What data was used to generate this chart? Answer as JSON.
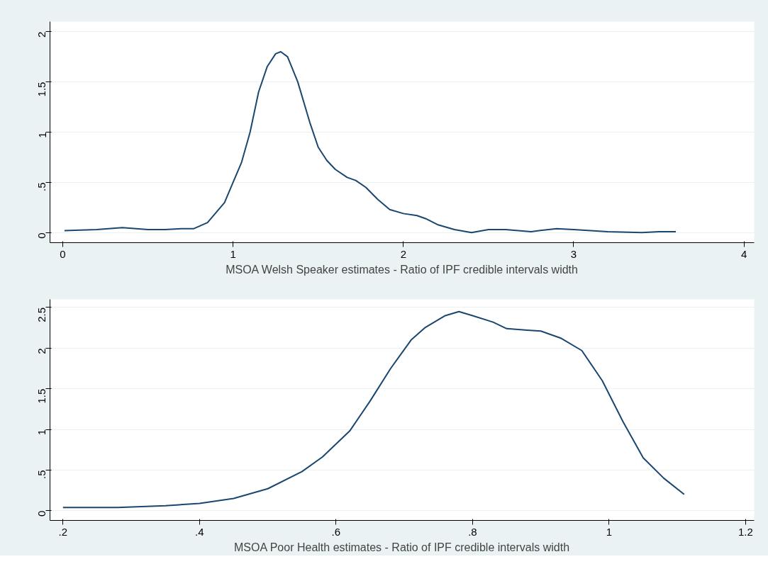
{
  "chart_data": [
    {
      "type": "line",
      "xlabel": "MSOA Welsh Speaker estimates - Ratio of IPF credible intervals width",
      "x": [
        0.01,
        0.2,
        0.35,
        0.5,
        0.6,
        0.7,
        0.77,
        0.85,
        0.95,
        1.0,
        1.05,
        1.1,
        1.15,
        1.2,
        1.25,
        1.28,
        1.32,
        1.38,
        1.45,
        1.5,
        1.55,
        1.6,
        1.67,
        1.72,
        1.78,
        1.85,
        1.92,
        2.0,
        2.08,
        2.13,
        2.2,
        2.3,
        2.4,
        2.5,
        2.6,
        2.75,
        2.9,
        3.0,
        3.2,
        3.4,
        3.5,
        3.6
      ],
      "series": [
        {
          "color": "#1a476f",
          "values": [
            0.02,
            0.03,
            0.05,
            0.03,
            0.03,
            0.04,
            0.04,
            0.1,
            0.3,
            0.5,
            0.7,
            1.0,
            1.4,
            1.65,
            1.78,
            1.8,
            1.75,
            1.5,
            1.1,
            0.85,
            0.72,
            0.63,
            0.55,
            0.52,
            0.45,
            0.33,
            0.23,
            0.19,
            0.17,
            0.14,
            0.08,
            0.03,
            0.0,
            0.03,
            0.03,
            0.01,
            0.04,
            0.03,
            0.01,
            0.0,
            0.01,
            0.01
          ]
        }
      ],
      "xlim": [
        -0.075,
        4.06
      ],
      "xticks": [
        0,
        1,
        2,
        3,
        4
      ],
      "ylim": [
        -0.1,
        2.1
      ],
      "yticks": [
        {
          "value": 0,
          "label": "0"
        },
        {
          "value": 0.5,
          "label": ".5"
        },
        {
          "value": 1,
          "label": "1"
        },
        {
          "value": 1.5,
          "label": "1.5"
        },
        {
          "value": 2,
          "label": "2"
        }
      ],
      "grid": "y",
      "marker": "none",
      "line_style": "solid"
    },
    {
      "type": "line",
      "xlabel": "MSOA Poor Health estimates - Ratio of IPF credible intervals width",
      "x": [
        0.2,
        0.28,
        0.35,
        0.4,
        0.45,
        0.5,
        0.55,
        0.58,
        0.62,
        0.65,
        0.68,
        0.71,
        0.73,
        0.76,
        0.78,
        0.8,
        0.83,
        0.85,
        0.88,
        0.9,
        0.93,
        0.96,
        0.99,
        1.02,
        1.05,
        1.08,
        1.11
      ],
      "series": [
        {
          "color": "#1a476f",
          "values": [
            0.04,
            0.04,
            0.06,
            0.09,
            0.15,
            0.27,
            0.48,
            0.66,
            0.98,
            1.35,
            1.75,
            2.1,
            2.25,
            2.4,
            2.45,
            2.4,
            2.32,
            2.24,
            2.22,
            2.21,
            2.12,
            1.97,
            1.6,
            1.1,
            0.65,
            0.4,
            0.2
          ]
        }
      ],
      "xlim": [
        0.181,
        1.2125
      ],
      "xticks": [
        {
          "value": 0.2,
          "label": ".2"
        },
        {
          "value": 0.4,
          "label": ".4"
        },
        {
          "value": 0.6,
          "label": ".6"
        },
        {
          "value": 0.8,
          "label": ".8"
        },
        {
          "value": 1,
          "label": "1"
        },
        {
          "value": 1.2,
          "label": "1.2"
        }
      ],
      "ylim": [
        -0.12,
        2.6
      ],
      "yticks": [
        {
          "value": 0,
          "label": "0"
        },
        {
          "value": 0.5,
          "label": ".5"
        },
        {
          "value": 1,
          "label": "1"
        },
        {
          "value": 1.5,
          "label": "1.5"
        },
        {
          "value": 2,
          "label": "2"
        },
        {
          "value": 2.5,
          "label": "2.5"
        }
      ],
      "grid": "y",
      "marker": "none",
      "line_style": "solid"
    }
  ]
}
